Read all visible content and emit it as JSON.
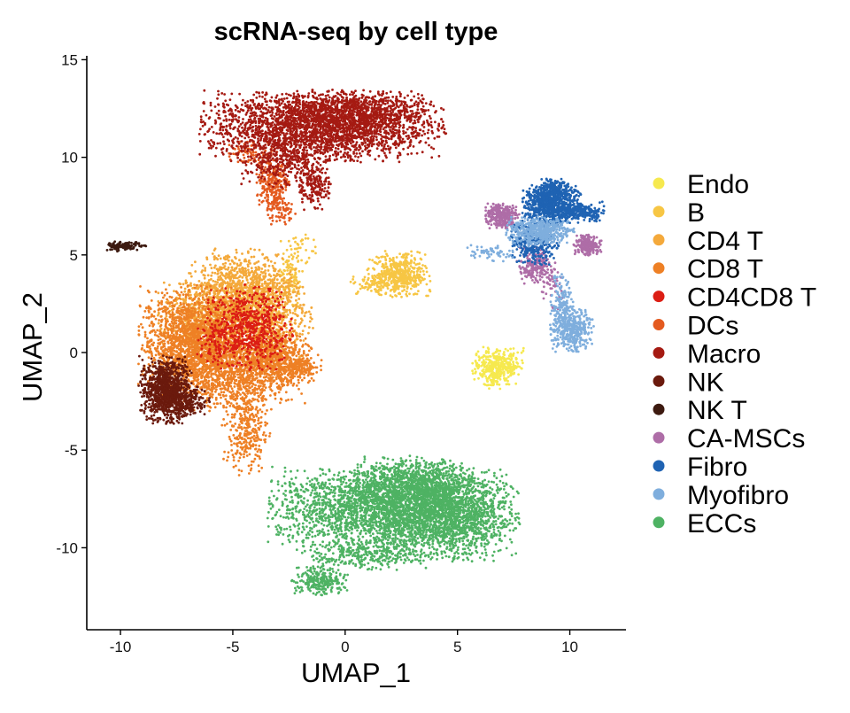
{
  "chart_data": {
    "type": "scatter",
    "title": "scRNA-seq by cell type",
    "xlabel": "UMAP_1",
    "ylabel": "UMAP_2",
    "xlim": [
      -11.5,
      12.5
    ],
    "ylim": [
      -14.2,
      15.2
    ],
    "x_ticks": [
      -10,
      -5,
      0,
      5,
      10
    ],
    "y_ticks": [
      -10,
      -5,
      0,
      5,
      10,
      15
    ],
    "x_tick_labels": [
      "-10",
      "-5",
      "0",
      "5",
      "10"
    ],
    "y_tick_labels": [
      "-10",
      "-5",
      "0",
      "5",
      "10",
      "15"
    ],
    "grid": false,
    "legend_position": "right",
    "series": [
      {
        "name": "Endo",
        "color": "#F6E94F",
        "clusters": [
          {
            "cx": 6.8,
            "cy": -0.7,
            "sx": 0.55,
            "sy": 0.45,
            "n": 380
          },
          {
            "cx": 6.6,
            "cy": -1.4,
            "sx": 0.2,
            "sy": 0.3,
            "n": 40
          }
        ]
      },
      {
        "name": "B",
        "color": "#F7C644",
        "clusters": [
          {
            "cx": 2.4,
            "cy": 4.0,
            "sx": 0.65,
            "sy": 0.55,
            "n": 480
          },
          {
            "cx": 1.3,
            "cy": 3.5,
            "sx": 0.5,
            "sy": 0.25,
            "n": 80
          },
          {
            "cx": -2.4,
            "cy": 3.6,
            "sx": 0.25,
            "sy": 0.7,
            "n": 110
          },
          {
            "cx": -2.0,
            "cy": 5.3,
            "sx": 0.4,
            "sy": 0.5,
            "n": 40
          }
        ]
      },
      {
        "name": "CD4 T",
        "color": "#F4A93B",
        "clusters": [
          {
            "cx": -4.8,
            "cy": 3.2,
            "sx": 1.1,
            "sy": 1.0,
            "n": 900
          },
          {
            "cx": -3.4,
            "cy": 1.8,
            "sx": 0.9,
            "sy": 1.2,
            "n": 700
          },
          {
            "cx": -6.2,
            "cy": 1.9,
            "sx": 1.0,
            "sy": 0.8,
            "n": 500
          }
        ]
      },
      {
        "name": "CD8 T",
        "color": "#EE8025",
        "clusters": [
          {
            "cx": -6.8,
            "cy": 0.6,
            "sx": 1.1,
            "sy": 1.3,
            "n": 1500
          },
          {
            "cx": -4.9,
            "cy": -0.6,
            "sx": 1.5,
            "sy": 1.1,
            "n": 1500
          },
          {
            "cx": -3.0,
            "cy": -0.4,
            "sx": 0.7,
            "sy": 0.6,
            "n": 400
          },
          {
            "cx": -4.4,
            "cy": -4.0,
            "sx": 0.5,
            "sy": 1.1,
            "n": 300
          },
          {
            "cx": -1.9,
            "cy": -0.8,
            "sx": 0.5,
            "sy": 0.35,
            "n": 120
          }
        ]
      },
      {
        "name": "CD4CD8 T",
        "color": "#DC1E14",
        "clusters": [
          {
            "cx": -4.3,
            "cy": 1.3,
            "sx": 0.9,
            "sy": 1.0,
            "n": 650
          },
          {
            "cx": -5.8,
            "cy": 0.4,
            "sx": 0.4,
            "sy": 0.5,
            "n": 60
          }
        ]
      },
      {
        "name": "DCs",
        "color": "#E45A1F",
        "clusters": [
          {
            "cx": -3.2,
            "cy": 8.6,
            "sx": 0.35,
            "sy": 0.6,
            "n": 260
          },
          {
            "cx": -2.8,
            "cy": 7.2,
            "sx": 0.3,
            "sy": 0.3,
            "n": 60
          },
          {
            "cx": -4.1,
            "cy": 10.2,
            "sx": 0.5,
            "sy": 0.3,
            "n": 80
          }
        ]
      },
      {
        "name": "Macro",
        "color": "#A51A12",
        "clusters": [
          {
            "cx": -1.0,
            "cy": 11.6,
            "sx": 2.5,
            "sy": 0.85,
            "n": 2600
          },
          {
            "cx": -2.9,
            "cy": 9.9,
            "sx": 0.9,
            "sy": 0.7,
            "n": 300
          },
          {
            "cx": -1.4,
            "cy": 8.6,
            "sx": 0.35,
            "sy": 0.6,
            "n": 200
          },
          {
            "cx": 0.6,
            "cy": 12.4,
            "sx": 1.5,
            "sy": 0.45,
            "n": 500
          }
        ]
      },
      {
        "name": "NK",
        "color": "#6B1A0D",
        "clusters": [
          {
            "cx": -8.0,
            "cy": -1.9,
            "sx": 0.55,
            "sy": 0.8,
            "n": 900
          },
          {
            "cx": -7.1,
            "cy": -2.5,
            "sx": 0.5,
            "sy": 0.4,
            "n": 250
          }
        ]
      },
      {
        "name": "NK T",
        "color": "#3D1A10",
        "clusters": [
          {
            "cx": -9.8,
            "cy": 5.45,
            "sx": 0.45,
            "sy": 0.12,
            "n": 120
          }
        ]
      },
      {
        "name": "CA-MSCs",
        "color": "#AE6DA7",
        "clusters": [
          {
            "cx": 7.0,
            "cy": 7.0,
            "sx": 0.35,
            "sy": 0.3,
            "n": 280
          },
          {
            "cx": 10.8,
            "cy": 5.5,
            "sx": 0.3,
            "sy": 0.25,
            "n": 200
          },
          {
            "cx": 8.4,
            "cy": 4.5,
            "sx": 0.35,
            "sy": 0.45,
            "n": 200
          },
          {
            "cx": 9.2,
            "cy": 3.5,
            "sx": 0.25,
            "sy": 0.6,
            "n": 60
          }
        ]
      },
      {
        "name": "Fibro",
        "color": "#1F63B3",
        "clusters": [
          {
            "cx": 9.2,
            "cy": 7.6,
            "sx": 0.6,
            "sy": 0.5,
            "n": 800
          },
          {
            "cx": 10.5,
            "cy": 7.2,
            "sx": 0.6,
            "sy": 0.25,
            "n": 200
          },
          {
            "cx": 8.4,
            "cy": 5.7,
            "sx": 0.5,
            "sy": 0.55,
            "n": 350
          },
          {
            "cx": 9.3,
            "cy": 8.4,
            "sx": 0.3,
            "sy": 0.25,
            "n": 120
          }
        ]
      },
      {
        "name": "Myofibro",
        "color": "#7FAEDD",
        "clusters": [
          {
            "cx": 8.7,
            "cy": 6.2,
            "sx": 0.7,
            "sy": 0.35,
            "n": 500
          },
          {
            "cx": 10.1,
            "cy": 1.2,
            "sx": 0.45,
            "sy": 0.55,
            "n": 420
          },
          {
            "cx": 9.6,
            "cy": 2.7,
            "sx": 0.25,
            "sy": 0.6,
            "n": 120
          },
          {
            "cx": 6.5,
            "cy": 5.1,
            "sx": 0.5,
            "sy": 0.2,
            "n": 60
          }
        ]
      },
      {
        "name": "ECCs",
        "color": "#4EB263",
        "clusters": [
          {
            "cx": 1.6,
            "cy": -8.0,
            "sx": 2.3,
            "sy": 1.0,
            "n": 2400
          },
          {
            "cx": 4.7,
            "cy": -8.3,
            "sx": 1.4,
            "sy": 1.1,
            "n": 1600
          },
          {
            "cx": 3.1,
            "cy": -6.6,
            "sx": 1.2,
            "sy": 0.6,
            "n": 700
          },
          {
            "cx": -1.1,
            "cy": -11.7,
            "sx": 0.6,
            "sy": 0.35,
            "n": 250
          },
          {
            "cx": 0.9,
            "cy": -10.4,
            "sx": 1.3,
            "sy": 0.35,
            "n": 300
          }
        ]
      }
    ]
  }
}
